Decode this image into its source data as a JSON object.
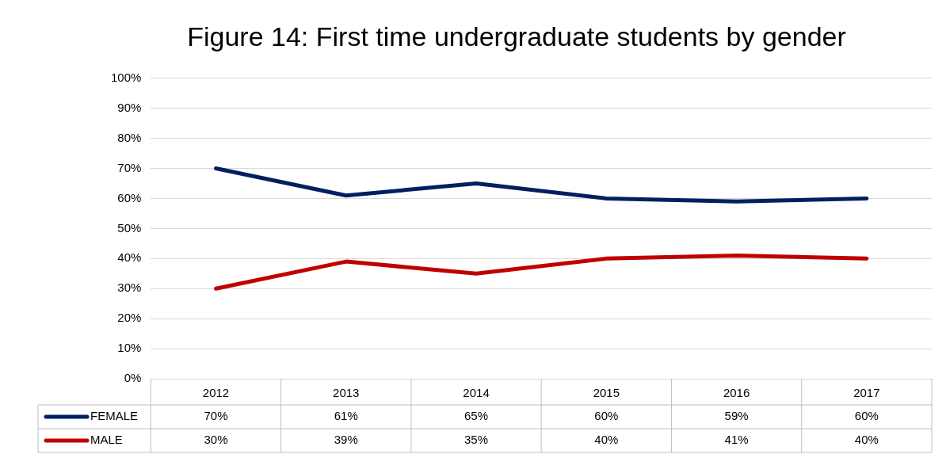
{
  "chart_data": {
    "type": "line",
    "title": "Figure 14: First time undergraduate students by gender",
    "categories": [
      "2012",
      "2013",
      "2014",
      "2015",
      "2016",
      "2017"
    ],
    "series": [
      {
        "name": "FEMALE",
        "color": "#002060",
        "values": [
          70,
          61,
          65,
          60,
          59,
          60
        ],
        "value_labels": [
          "70%",
          "61%",
          "65%",
          "60%",
          "59%",
          "60%"
        ]
      },
      {
        "name": "MALE",
        "color": "#c00000",
        "values": [
          30,
          39,
          35,
          40,
          41,
          40
        ],
        "value_labels": [
          "30%",
          "39%",
          "35%",
          "40%",
          "41%",
          "40%"
        ]
      }
    ],
    "ylim": [
      0,
      100
    ],
    "yticks": [
      {
        "value": 0,
        "label": "0%"
      },
      {
        "value": 10,
        "label": "10%"
      },
      {
        "value": 20,
        "label": "20%"
      },
      {
        "value": 30,
        "label": "30%"
      },
      {
        "value": 40,
        "label": "40%"
      },
      {
        "value": 50,
        "label": "50%"
      },
      {
        "value": 60,
        "label": "60%"
      },
      {
        "value": 70,
        "label": "70%"
      },
      {
        "value": 80,
        "label": "80%"
      },
      {
        "value": 90,
        "label": "90%"
      },
      {
        "value": 100,
        "label": "100%"
      }
    ],
    "grid": "y",
    "legend": "bottom",
    "marker": "none"
  }
}
